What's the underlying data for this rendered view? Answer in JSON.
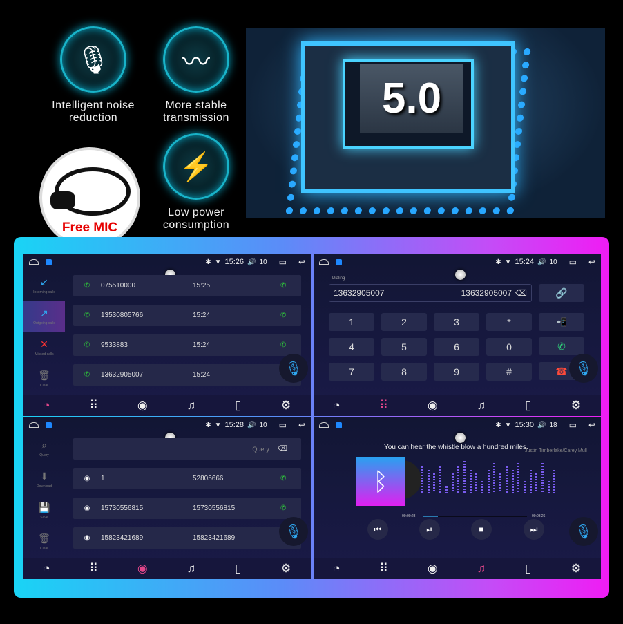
{
  "features": [
    {
      "icon": "microphone-icon",
      "glyph": "🎙",
      "label": "Intelligent noise reduction"
    },
    {
      "icon": "waveform-icon",
      "glyph": "〰",
      "label": "More stable transmission"
    },
    {
      "icon": "lightning-icon",
      "glyph": "⚡",
      "label": "Low power consumption"
    }
  ],
  "mic_badge": "Free MIC",
  "chip_label": "5.0",
  "colors": {
    "accent_cyan": "#19d4f5",
    "accent_magenta": "#f01cf4",
    "call_green": "#2fd03a",
    "voice_blue": "#2fa7f0"
  },
  "screens": {
    "calls": {
      "status": {
        "time": "15:26",
        "volume": "10"
      },
      "sidebar": [
        {
          "label": "Incoming calls",
          "icon": "incoming-call-icon",
          "glyph": "↙"
        },
        {
          "label": "Outgoing calls",
          "icon": "outgoing-call-icon",
          "glyph": "↗",
          "active": true
        },
        {
          "label": "Missed calls",
          "icon": "missed-call-icon",
          "glyph": "✕"
        },
        {
          "label": "Clear",
          "icon": "trash-icon",
          "glyph": "🗑"
        }
      ],
      "rows": [
        {
          "number": "075510000",
          "time": "15:25"
        },
        {
          "number": "13530805766",
          "time": "15:24"
        },
        {
          "number": "9533883",
          "time": "15:24"
        },
        {
          "number": "13632905007",
          "time": "15:24"
        }
      ]
    },
    "dialer": {
      "status": {
        "time": "15:24",
        "volume": "10"
      },
      "label": "Dialing",
      "input": "13632905007",
      "input_right": "13632905007",
      "keys": [
        "1",
        "2",
        "3",
        "*",
        "4",
        "5",
        "6",
        "0",
        "7",
        "8",
        "9",
        "#"
      ]
    },
    "contacts": {
      "status": {
        "time": "15:28",
        "volume": "10"
      },
      "sidebar": [
        {
          "label": "Query",
          "icon": "search-icon",
          "glyph": "⌕"
        },
        {
          "label": "Download",
          "icon": "download-icon",
          "glyph": "⬇"
        },
        {
          "label": "Save",
          "icon": "save-icon",
          "glyph": "💾"
        },
        {
          "label": "Clear",
          "icon": "trash-icon",
          "glyph": "🗑"
        }
      ],
      "query_placeholder": "Query",
      "rows": [
        {
          "name": "1",
          "number": "52805666"
        },
        {
          "name": "15730556815",
          "number": "15730556815"
        },
        {
          "name": "15823421689",
          "number": "15823421689"
        }
      ]
    },
    "music": {
      "status": {
        "time": "15:30",
        "volume": "18"
      },
      "title": "You can hear the whistle blow a hundred miles.",
      "artist": "Justin Timberlake/Carey Mull",
      "elapsed": "00:00:28",
      "total": "00:03:26",
      "progress": 0.14
    }
  },
  "nav": [
    {
      "icon": "call-log-icon",
      "glyph": "◔"
    },
    {
      "icon": "keypad-icon",
      "glyph": "⠿"
    },
    {
      "icon": "contacts-icon",
      "glyph": "◉"
    },
    {
      "icon": "music-icon",
      "glyph": "♫"
    },
    {
      "icon": "phone-link-icon",
      "glyph": "▯"
    },
    {
      "icon": "settings-icon",
      "glyph": "⚙"
    }
  ]
}
